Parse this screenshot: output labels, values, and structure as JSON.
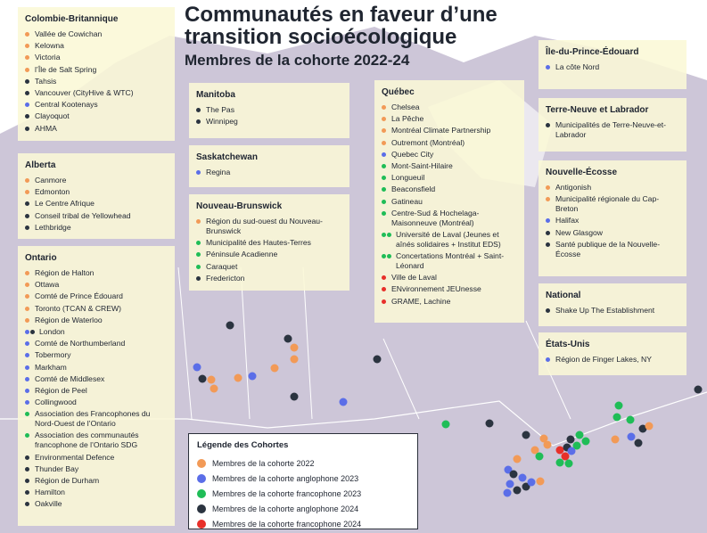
{
  "title": "Communautés en faveur d’une transition socioécologique",
  "subtitle": "Membres de la cohorte 2022-24",
  "legend": {
    "title": "Légende des Cohortes",
    "items": [
      {
        "label": "Membres de la cohorte 2022",
        "color": "#f29a57"
      },
      {
        "label": "Membres de la cohorte anglophone 2023",
        "color": "#5b6ee8"
      },
      {
        "label": "Membres de la cohorte francophone 2023",
        "color": "#1fbd57"
      },
      {
        "label": "Membres de la cohorte anglophone 2024",
        "color": "#2b3440"
      },
      {
        "label": "Membres de la cohorte francophone 2024",
        "color": "#e8302a"
      }
    ]
  },
  "panels": [
    {
      "title": "Colombie-Britannique",
      "items": [
        {
          "label": "Vallée de Cowichan",
          "colors": [
            "#f29a57"
          ]
        },
        {
          "label": "Kelowna",
          "colors": [
            "#f29a57"
          ]
        },
        {
          "label": "Victoria",
          "colors": [
            "#f29a57"
          ]
        },
        {
          "label": "l’Île de Salt Spring",
          "colors": [
            "#f29a57"
          ]
        },
        {
          "label": "Tahsis",
          "colors": [
            "#2b3440"
          ]
        },
        {
          "label": "Vancouver (CityHive & WTC)",
          "colors": [
            "#2b3440"
          ]
        },
        {
          "label": "Central Kootenays",
          "colors": [
            "#5b6ee8"
          ]
        },
        {
          "label": "Clayoquot",
          "colors": [
            "#2b3440"
          ]
        },
        {
          "label": "AHMA",
          "colors": [
            "#2b3440"
          ]
        }
      ]
    },
    {
      "title": "Alberta",
      "items": [
        {
          "label": "Canmore",
          "colors": [
            "#f29a57"
          ]
        },
        {
          "label": "Edmonton",
          "colors": [
            "#f29a57"
          ]
        },
        {
          "label": "Le Centre Afrique",
          "colors": [
            "#2b3440"
          ]
        },
        {
          "label": "Conseil tribal de Yellowhead",
          "colors": [
            "#2b3440"
          ]
        },
        {
          "label": "Lethbridge",
          "colors": [
            "#2b3440"
          ]
        }
      ]
    },
    {
      "title": "Ontario",
      "items": [
        {
          "label": "Région de Halton",
          "colors": [
            "#f29a57"
          ]
        },
        {
          "label": "Ottawa",
          "colors": [
            "#f29a57"
          ]
        },
        {
          "label": "Comté de Prince Édouard",
          "colors": [
            "#f29a57"
          ]
        },
        {
          "label": "Toronto (TCAN & CREW)",
          "colors": [
            "#f29a57"
          ]
        },
        {
          "label": "Région de Waterloo",
          "colors": [
            "#f29a57"
          ]
        },
        {
          "label": "London",
          "colors": [
            "#5b6ee8",
            "#2b3440"
          ]
        },
        {
          "label": "Comté de Northumberland",
          "colors": [
            "#5b6ee8"
          ]
        },
        {
          "label": "Tobermory",
          "colors": [
            "#5b6ee8"
          ]
        },
        {
          "label": "Markham",
          "colors": [
            "#5b6ee8"
          ]
        },
        {
          "label": "Comté de Middlesex",
          "colors": [
            "#5b6ee8"
          ]
        },
        {
          "label": "Région de Peel",
          "colors": [
            "#5b6ee8"
          ]
        },
        {
          "label": "Collingwood",
          "colors": [
            "#5b6ee8"
          ]
        },
        {
          "label": "Association des Francophones du Nord-Ouest de l’Ontario",
          "colors": [
            "#1fbd57"
          ]
        },
        {
          "label": "Association des communautés francophone de l’Ontario SDG",
          "colors": [
            "#1fbd57"
          ]
        },
        {
          "label": "Environmental Defence",
          "colors": [
            "#2b3440"
          ]
        },
        {
          "label": "Thunder Bay",
          "colors": [
            "#2b3440"
          ]
        },
        {
          "label": "Région de Durham",
          "colors": [
            "#2b3440"
          ]
        },
        {
          "label": "Hamilton",
          "colors": [
            "#2b3440"
          ]
        },
        {
          "label": "Oakville",
          "colors": [
            "#2b3440"
          ]
        }
      ]
    },
    {
      "title": "Manitoba",
      "items": [
        {
          "label": "The Pas",
          "colors": [
            "#2b3440"
          ]
        },
        {
          "label": "Winnipeg",
          "colors": [
            "#2b3440"
          ]
        }
      ]
    },
    {
      "title": "Saskatchewan",
      "items": [
        {
          "label": "Regina",
          "colors": [
            "#5b6ee8"
          ]
        }
      ]
    },
    {
      "title": "Nouveau-Brunswick",
      "items": [
        {
          "label": "Région du sud-ouest du Nouveau-Brunswick",
          "colors": [
            "#f29a57"
          ]
        },
        {
          "label": "Municipalité des Hautes-Terres",
          "colors": [
            "#1fbd57"
          ]
        },
        {
          "label": "Péninsule Acadienne",
          "colors": [
            "#1fbd57"
          ]
        },
        {
          "label": "Caraquet",
          "colors": [
            "#1fbd57"
          ]
        },
        {
          "label": "Fredericton",
          "colors": [
            "#2b3440"
          ]
        }
      ]
    },
    {
      "title": "Québec",
      "items": [
        {
          "label": "Chelsea",
          "colors": [
            "#f29a57"
          ]
        },
        {
          "label": "La Pêche",
          "colors": [
            "#f29a57"
          ]
        },
        {
          "label": "Montréal Climate Partnership",
          "colors": [
            "#f29a57"
          ]
        },
        {
          "label": "Outremont (Montréal)",
          "colors": [
            "#f29a57"
          ]
        },
        {
          "label": "Quebec City",
          "colors": [
            "#5b6ee8"
          ]
        },
        {
          "label": "Mont-Saint-Hilaire",
          "colors": [
            "#1fbd57"
          ]
        },
        {
          "label": "Longueuil",
          "colors": [
            "#1fbd57"
          ]
        },
        {
          "label": "Beaconsfield",
          "colors": [
            "#1fbd57"
          ]
        },
        {
          "label": "Gatineau",
          "colors": [
            "#1fbd57"
          ]
        },
        {
          "label": "Centre-Sud & Hochelaga-Maisonneuve (Montréal)",
          "colors": [
            "#1fbd57"
          ]
        },
        {
          "label": "Université de Laval (Jeunes et aînés solidaires + Institut EDS)",
          "colors": [
            "#1fbd57",
            "#1fbd57"
          ]
        },
        {
          "label": "Concertations Montréal + Saint-Léonard",
          "colors": [
            "#1fbd57",
            "#1fbd57"
          ]
        },
        {
          "label": "Ville de Laval",
          "colors": [
            "#e8302a"
          ]
        },
        {
          "label": "ENvironnement JEUnesse",
          "colors": [
            "#e8302a"
          ]
        },
        {
          "label": "GRAME, Lachine",
          "colors": [
            "#e8302a"
          ]
        }
      ]
    },
    {
      "title": "Île-du-Prince-Édouard",
      "items": [
        {
          "label": "La côte Nord",
          "colors": [
            "#5b6ee8"
          ]
        }
      ]
    },
    {
      "title": "Terre-Neuve et Labrador",
      "items": [
        {
          "label": "Municipalités de Terre-Neuve-et-Labrador",
          "colors": [
            "#2b3440"
          ]
        }
      ]
    },
    {
      "title": "Nouvelle-Écosse",
      "items": [
        {
          "label": "Antigonish",
          "colors": [
            "#f29a57"
          ]
        },
        {
          "label": "Municipalité régionale du Cap-Breton",
          "colors": [
            "#f29a57"
          ]
        },
        {
          "label": "Halifax",
          "colors": [
            "#5b6ee8"
          ]
        },
        {
          "label": "New Glasgow",
          "colors": [
            "#2b3440"
          ]
        },
        {
          "label": "Santé publique de la Nouvelle-Écosse",
          "colors": [
            "#2b3440"
          ]
        }
      ]
    },
    {
      "title": "National",
      "items": [
        {
          "label": "Shake Up The Establishment",
          "colors": [
            "#2b3440"
          ]
        }
      ]
    },
    {
      "title": "États-Unis",
      "items": [
        {
          "label": "Région de Finger Lakes, NY",
          "colors": [
            "#5b6ee8"
          ]
        }
      ]
    }
  ]
}
